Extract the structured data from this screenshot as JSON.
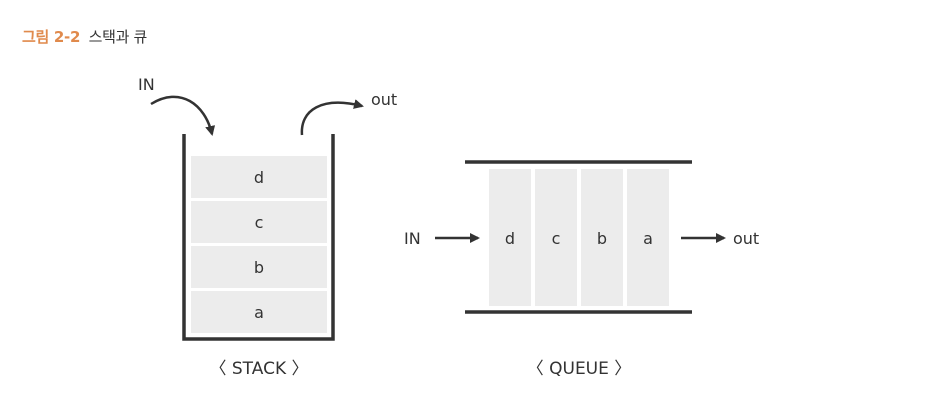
{
  "figure": {
    "number": "그림 2-2",
    "title": "스택과 큐"
  },
  "stack": {
    "in_label": "IN",
    "out_label": "out",
    "items": [
      "d",
      "c",
      "b",
      "a"
    ],
    "caption": "〈 STACK 〉"
  },
  "queue": {
    "in_label": "IN",
    "out_label": "out",
    "items": [
      "d",
      "c",
      "b",
      "a"
    ],
    "caption": "〈 QUEUE 〉"
  },
  "colors": {
    "caption_accent": "#e08a4c",
    "stroke": "#333333",
    "cell_fill": "#ececec"
  }
}
